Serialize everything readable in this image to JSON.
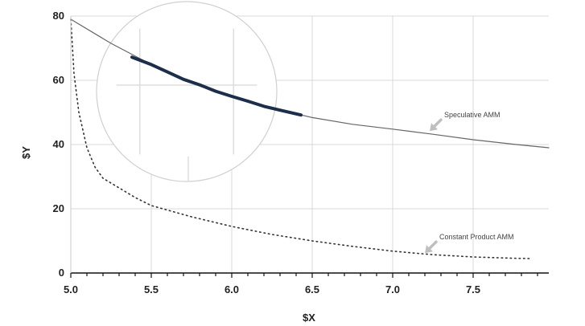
{
  "chart_data": {
    "type": "line",
    "xlabel": "$X",
    "ylabel": "$Y",
    "xlim": [
      5.0,
      7.97
    ],
    "ylim": [
      0,
      80
    ],
    "x_ticks": [
      5.0,
      5.5,
      6.0,
      6.5,
      7.0,
      7.5
    ],
    "x_tick_labels": [
      "5.0",
      "5.5",
      "6.0",
      "6.5",
      "7.0",
      "7.5"
    ],
    "y_ticks": [
      0,
      20,
      40,
      60,
      80
    ],
    "y_tick_labels": [
      "0",
      "20",
      "40",
      "60",
      "80"
    ],
    "grid": true,
    "series": [
      {
        "name": "Speculative AMM",
        "style": "solid",
        "color": "#666666",
        "x": [
          5.0,
          5.25,
          5.5,
          5.75,
          6.0,
          6.25,
          6.5,
          6.75,
          7.0,
          7.25,
          7.5,
          7.75,
          7.97
        ],
        "y": [
          79,
          71.5,
          64.9,
          59.4,
          55.0,
          51.4,
          48.4,
          46.3,
          44.8,
          43.2,
          41.5,
          40.1,
          39.0
        ]
      },
      {
        "name": "",
        "style": "highlight",
        "color": "#1c2e4a",
        "x": [
          5.38,
          5.5,
          5.6,
          5.7,
          5.8,
          5.9,
          6.0,
          6.1,
          6.2,
          6.3,
          6.43
        ],
        "y": [
          67.2,
          64.9,
          62.6,
          60.3,
          58.6,
          56.6,
          55.0,
          53.5,
          51.9,
          50.7,
          49.2
        ]
      },
      {
        "name": "Constant Product AMM",
        "style": "dotted",
        "color": "#333333",
        "x": [
          5.0,
          5.02,
          5.05,
          5.1,
          5.15,
          5.2,
          5.3,
          5.4,
          5.5,
          5.75,
          6.0,
          6.25,
          6.5,
          6.75,
          7.0,
          7.25,
          7.5,
          7.75,
          7.85
        ],
        "y": [
          79,
          62,
          50,
          39,
          33,
          29.5,
          26.5,
          23.5,
          21.0,
          17.5,
          14.5,
          12.0,
          10.0,
          8.3,
          6.8,
          5.7,
          5.0,
          4.6,
          4.5
        ]
      }
    ],
    "annotations": [
      {
        "text": "Speculative AMM",
        "target": [
          7.23,
          44.2
        ]
      },
      {
        "text": "Constant Product AMM",
        "target": [
          7.2,
          6.2
        ]
      }
    ],
    "magnifier": {
      "center_x": 5.72,
      "center_y": 56.5,
      "radius_y": 28
    }
  }
}
